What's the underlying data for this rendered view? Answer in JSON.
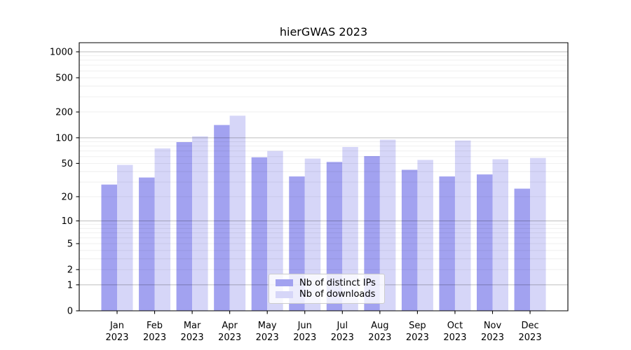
{
  "chart_data": {
    "type": "bar",
    "title": "hierGWAS 2023",
    "y_scale": "log10(value+1)",
    "ylim": [
      0,
      1000
    ],
    "yticks": [
      0,
      1,
      2,
      5,
      10,
      20,
      50,
      100,
      200,
      500,
      1000
    ],
    "categories": [
      "Jan",
      "Feb",
      "Mar",
      "Apr",
      "May",
      "Jun",
      "Jul",
      "Aug",
      "Sep",
      "Oct",
      "Nov",
      "Dec"
    ],
    "year_label": "2023",
    "grid": "horizontal, log minor + decade major",
    "legend_position": "inside-bottom-center",
    "series": [
      {
        "name": "Nb of distinct IPs",
        "color": "#a2a2f0",
        "values": [
          28,
          34,
          89,
          141,
          59,
          35,
          52,
          61,
          42,
          35,
          37,
          25
        ]
      },
      {
        "name": "Nb of downloads",
        "color": "#d6d6f8",
        "values": [
          48,
          75,
          104,
          181,
          70,
          57,
          78,
          95,
          55,
          93,
          56,
          58
        ]
      }
    ]
  }
}
